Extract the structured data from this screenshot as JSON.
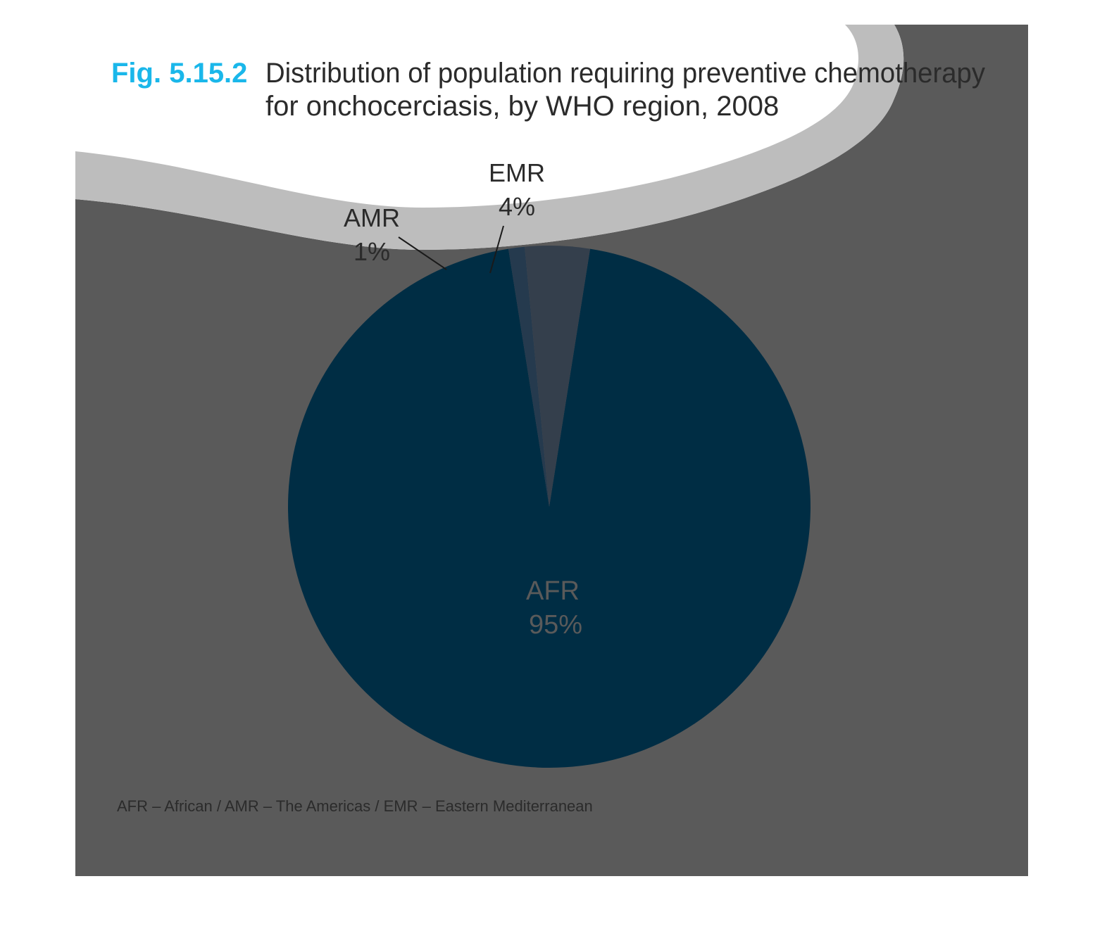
{
  "figure": {
    "number": "Fig. 5.15.2",
    "title_line1": "Distribution of population requiring preventive chemotherapy",
    "title_line2": "for onchocerciasis, by WHO region, 2008",
    "footnote": "AFR – African / AMR – The Americas / EMR – Eastern Mediterranean"
  },
  "colors": {
    "fig_number": "#1ab7ea",
    "panel_background": "#5a5a5a",
    "wave_band": "#bdbdbd",
    "afr": "#002d44",
    "amr": "#253a4e",
    "emr": "#343f4c",
    "afr_label": "#5a5a5a"
  },
  "chart_data": {
    "type": "pie",
    "title": "Distribution of population requiring preventive chemotherapy for onchocerciasis, by WHO region, 2008",
    "unit": "%",
    "slices": [
      {
        "label": "AFR",
        "value": 95,
        "value_label": "95%",
        "color": "#002d44"
      },
      {
        "label": "AMR",
        "value": 1,
        "value_label": "1%",
        "color": "#253a4e"
      },
      {
        "label": "EMR",
        "value": 4,
        "value_label": "4%",
        "color": "#343f4c"
      }
    ],
    "legend": "AFR – African / AMR – The Americas / EMR – Eastern Mediterranean"
  }
}
